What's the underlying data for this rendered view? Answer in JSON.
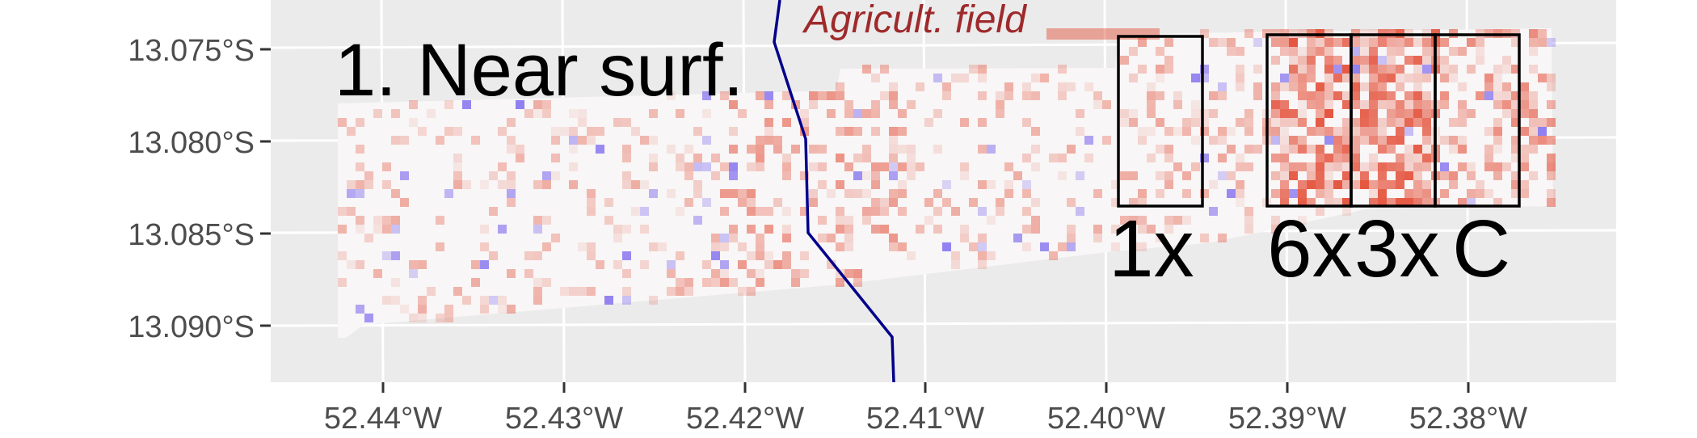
{
  "map": {
    "title": "1. Near surf.",
    "field_label": "Agricult. field",
    "field_label_color": "#9e2a2b",
    "river_color": "#00008b",
    "panel_background": "#ebebeb",
    "grid_color": "#ffffff",
    "high_color": "#e34a33",
    "low_color": "#7b68ee",
    "neutral_color": "#f7f7f7",
    "zones": [
      {
        "label": "1x"
      },
      {
        "label": "6x"
      },
      {
        "label": "3x"
      },
      {
        "label": "C"
      }
    ],
    "y_ticks": [
      "13.075°S",
      "13.080°S",
      "13.085°S",
      "13.090°S"
    ],
    "x_ticks": [
      "52.44°W",
      "52.43°W",
      "52.42°W",
      "52.41°W",
      "52.40°W",
      "52.39°W",
      "52.38°W"
    ]
  }
}
